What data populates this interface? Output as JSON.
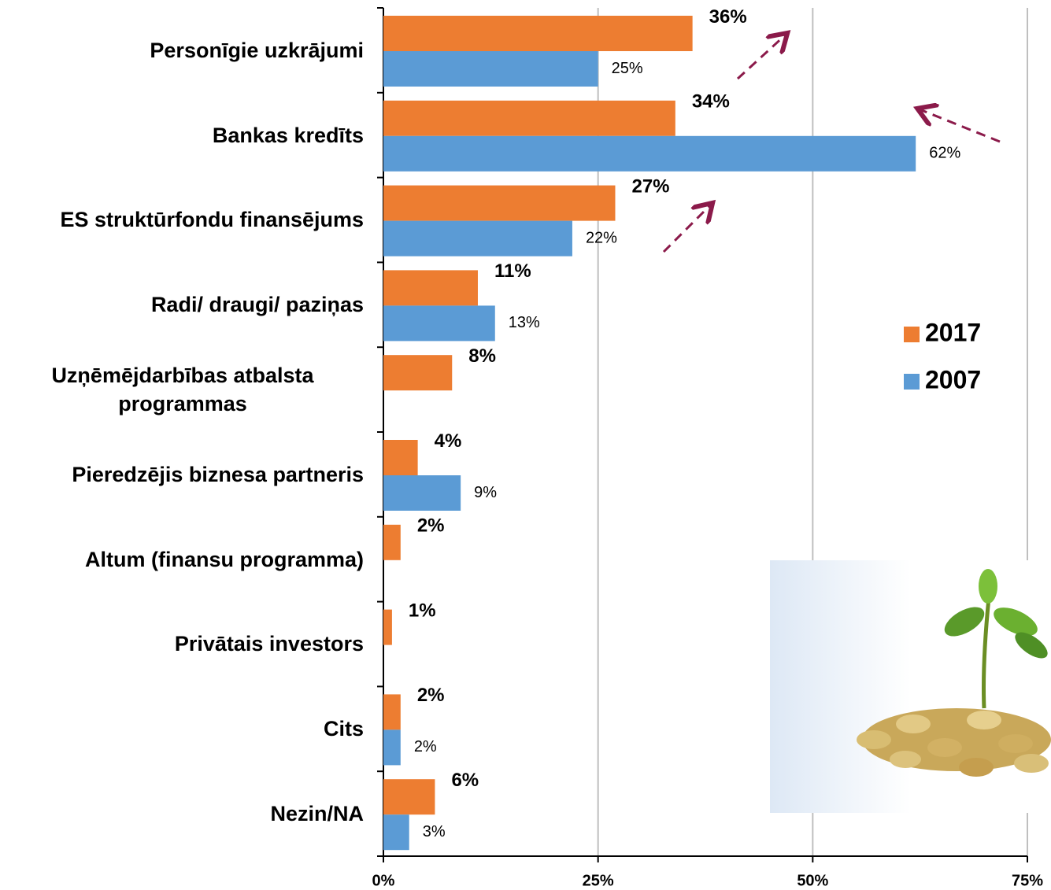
{
  "chart_data": {
    "type": "hbar",
    "categories": [
      "Personīgie uzkrājumi",
      "Bankas kredīts",
      "ES struktūrfondu finansējums",
      "Radi/ draugi/ paziņas",
      "Uzņēmējdarbības atbalsta programmas",
      "Pieredzējis biznesa partneris",
      "Altum (finansu programma)",
      "Privātais investors",
      "Cits",
      "Nezin/NA"
    ],
    "series": [
      {
        "name": "2017",
        "color": "#ed7d31",
        "values": [
          36,
          34,
          27,
          11,
          8,
          4,
          2,
          1,
          2,
          6
        ],
        "value_labels": [
          "36%",
          "34%",
          "27%",
          "11%",
          "8%",
          "4%",
          "2%",
          "1%",
          "2%",
          "6%"
        ]
      },
      {
        "name": "2007",
        "color": "#5b9bd5",
        "values": [
          25,
          62,
          22,
          13,
          null,
          9,
          null,
          null,
          2,
          3
        ],
        "value_labels": [
          "25%",
          "62%",
          "22%",
          "13%",
          null,
          "9%",
          null,
          null,
          "2%",
          "3%"
        ]
      }
    ],
    "xlim": [
      0,
      75
    ],
    "xticks": [
      {
        "value": 0,
        "label": "0%"
      },
      {
        "value": 25,
        "label": "25%"
      },
      {
        "value": 50,
        "label": "50%"
      },
      {
        "value": 75,
        "label": "75%"
      }
    ],
    "grid": true,
    "legend": "right"
  }
}
